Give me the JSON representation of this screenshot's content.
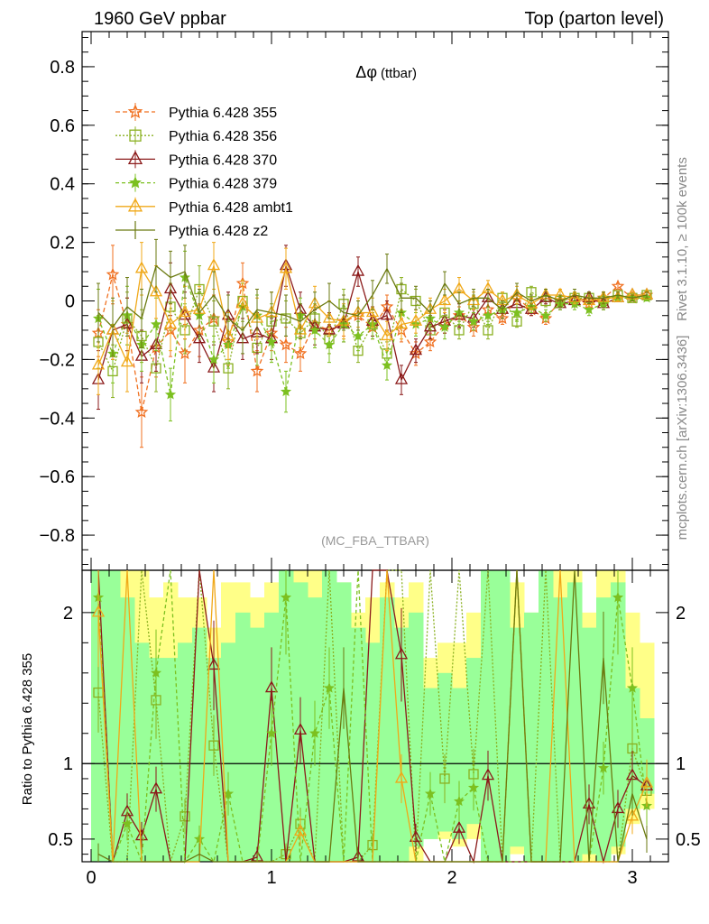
{
  "header": {
    "left": "1960 GeV ppbar",
    "right": "Top (parton level)"
  },
  "side_labels": {
    "rivet": "Rivet 3.1.10, ≥ 100k events",
    "mcplots": "mcplots.cern.ch [arXiv:1306.3436]"
  },
  "chart_data": [
    {
      "type": "line",
      "title": "Δφ",
      "title_suffix": "(ttbar)",
      "watermark": "(MC_FBA_TTBAR)",
      "xlim": [
        -0.05,
        3.2
      ],
      "ylim": [
        -0.92,
        0.92
      ],
      "yticks": [
        -0.8,
        -0.6,
        -0.4,
        -0.2,
        0,
        0.2,
        0.4,
        0.6,
        0.8
      ],
      "ytick_labels": [
        "−0.8",
        "−0.6",
        "−0.4",
        "−0.2",
        "0",
        "0.2",
        "0.4",
        "0.6",
        "0.8"
      ],
      "legend_position": "upper-left",
      "x": [
        0.04,
        0.12,
        0.2,
        0.28,
        0.36,
        0.44,
        0.52,
        0.6,
        0.68,
        0.76,
        0.84,
        0.92,
        1.0,
        1.08,
        1.16,
        1.24,
        1.32,
        1.4,
        1.48,
        1.56,
        1.64,
        1.72,
        1.8,
        1.88,
        1.96,
        2.04,
        2.12,
        2.2,
        2.28,
        2.36,
        2.44,
        2.52,
        2.6,
        2.68,
        2.76,
        2.84,
        2.92,
        3.0,
        3.08
      ],
      "series": [
        {
          "name": "Pythia 6.428 355",
          "color": "#f07020",
          "marker": "star-open",
          "dash": "5,3",
          "values": [
            -0.11,
            0.09,
            -0.08,
            -0.38,
            -0.16,
            -0.1,
            -0.18,
            -0.1,
            -0.06,
            -0.14,
            0.06,
            -0.24,
            -0.11,
            -0.15,
            -0.18,
            -0.08,
            -0.1,
            -0.07,
            -0.05,
            -0.09,
            -0.02,
            -0.1,
            -0.18,
            -0.14,
            -0.08,
            -0.05,
            -0.09,
            -0.03,
            -0.06,
            0.01,
            -0.03,
            -0.06,
            0.0,
            0.01,
            -0.01,
            0.01,
            0.05,
            0.01,
            0.02
          ],
          "errors": [
            0.08,
            0.1,
            0.09,
            0.12,
            0.1,
            0.09,
            0.1,
            0.09,
            0.08,
            0.08,
            0.07,
            0.07,
            0.06,
            0.06,
            0.06,
            0.05,
            0.05,
            0.05,
            0.05,
            0.04,
            0.04,
            0.04,
            0.04,
            0.03,
            0.03,
            0.03,
            0.03,
            0.03,
            0.02,
            0.02,
            0.02,
            0.02,
            0.02,
            0.02,
            0.02,
            0.02,
            0.01,
            0.01,
            0.01
          ]
        },
        {
          "name": "Pythia 6.428 356",
          "color": "#8ab020",
          "marker": "square-open",
          "dash": "2,2",
          "values": [
            -0.14,
            -0.24,
            -0.06,
            -0.12,
            -0.23,
            -0.02,
            -0.1,
            0.04,
            -0.07,
            -0.23,
            0.0,
            -0.16,
            -0.07,
            -0.06,
            -0.11,
            -0.06,
            -0.13,
            -0.01,
            -0.17,
            -0.08,
            -0.18,
            0.04,
            0.0,
            -0.1,
            -0.04,
            -0.1,
            -0.01,
            -0.1,
            0.01,
            -0.07,
            0.03,
            0.0,
            0.0,
            0.01,
            0.01,
            0.0,
            0.02,
            0.01,
            0.02
          ],
          "errors": [
            0.09,
            0.09,
            0.09,
            0.09,
            0.08,
            0.08,
            0.08,
            0.08,
            0.07,
            0.07,
            0.07,
            0.06,
            0.06,
            0.06,
            0.05,
            0.05,
            0.05,
            0.05,
            0.04,
            0.04,
            0.04,
            0.04,
            0.04,
            0.03,
            0.03,
            0.03,
            0.03,
            0.03,
            0.02,
            0.02,
            0.02,
            0.02,
            0.02,
            0.02,
            0.02,
            0.02,
            0.01,
            0.01,
            0.01
          ]
        },
        {
          "name": "Pythia 6.428 370",
          "color": "#8b1a1a",
          "marker": "triangle-open",
          "dash": "",
          "values": [
            -0.27,
            -0.1,
            -0.08,
            -0.19,
            -0.15,
            0.04,
            -0.05,
            -0.13,
            -0.23,
            -0.05,
            -0.13,
            -0.11,
            -0.13,
            0.12,
            -0.03,
            -0.09,
            -0.1,
            -0.08,
            0.1,
            -0.07,
            -0.05,
            -0.27,
            -0.17,
            -0.09,
            -0.07,
            -0.05,
            -0.06,
            0.01,
            -0.03,
            -0.01,
            -0.03,
            0.01,
            -0.01,
            0.0,
            0.01,
            -0.01,
            0.01,
            0.02,
            0.02
          ],
          "errors": [
            0.1,
            0.1,
            0.09,
            0.09,
            0.09,
            0.09,
            0.08,
            0.08,
            0.08,
            0.08,
            0.07,
            0.07,
            0.07,
            0.07,
            0.06,
            0.06,
            0.06,
            0.06,
            0.05,
            0.05,
            0.05,
            0.05,
            0.04,
            0.04,
            0.04,
            0.04,
            0.03,
            0.03,
            0.03,
            0.03,
            0.02,
            0.02,
            0.02,
            0.02,
            0.02,
            0.02,
            0.01,
            0.01,
            0.01
          ]
        },
        {
          "name": "Pythia 6.428 379",
          "color": "#7cc020",
          "marker": "star-filled",
          "dash": "4,3",
          "values": [
            -0.06,
            -0.18,
            -0.05,
            -0.15,
            -0.08,
            -0.32,
            0.08,
            -0.05,
            -0.2,
            -0.15,
            -0.02,
            -0.05,
            -0.14,
            -0.31,
            -0.05,
            -0.1,
            -0.15,
            -0.08,
            -0.12,
            -0.08,
            -0.22,
            -0.04,
            -0.08,
            -0.06,
            -0.09,
            -0.04,
            -0.07,
            -0.05,
            -0.03,
            -0.04,
            -0.02,
            -0.05,
            -0.01,
            -0.01,
            -0.03,
            -0.01,
            0.01,
            0.01,
            0.01
          ],
          "errors": [
            0.1,
            0.1,
            0.1,
            0.09,
            0.09,
            0.09,
            0.09,
            0.08,
            0.08,
            0.08,
            0.08,
            0.07,
            0.07,
            0.07,
            0.06,
            0.06,
            0.06,
            0.06,
            0.05,
            0.05,
            0.05,
            0.05,
            0.04,
            0.04,
            0.04,
            0.04,
            0.03,
            0.03,
            0.03,
            0.03,
            0.02,
            0.02,
            0.02,
            0.02,
            0.02,
            0.02,
            0.01,
            0.01,
            0.01
          ]
        },
        {
          "name": "Pythia 6.428 ambt1",
          "color": "#f0a818",
          "marker": "triangle-open",
          "dash": "",
          "values": [
            -0.22,
            -0.1,
            -0.21,
            0.11,
            0.03,
            -0.08,
            -0.04,
            -0.03,
            0.12,
            -0.12,
            -0.01,
            -0.06,
            -0.04,
            0.11,
            -0.1,
            -0.01,
            -0.06,
            -0.07,
            -0.04,
            -0.04,
            -0.12,
            -0.08,
            -0.07,
            -0.03,
            0.0,
            0.04,
            0.0,
            0.04,
            0.0,
            0.02,
            -0.01,
            0.02,
            0.02,
            0.01,
            0.0,
            0.01,
            0.01,
            0.02,
            0.02
          ],
          "errors": [
            0.1,
            0.1,
            0.1,
            0.09,
            0.09,
            0.09,
            0.09,
            0.08,
            0.08,
            0.08,
            0.08,
            0.07,
            0.07,
            0.07,
            0.06,
            0.06,
            0.06,
            0.06,
            0.05,
            0.05,
            0.05,
            0.05,
            0.04,
            0.04,
            0.04,
            0.04,
            0.03,
            0.03,
            0.03,
            0.03,
            0.02,
            0.02,
            0.02,
            0.02,
            0.02,
            0.02,
            0.01,
            0.01,
            0.01
          ]
        },
        {
          "name": "Pythia 6.428 z2",
          "color": "#6b7a10",
          "marker": "none",
          "dash": "",
          "values": [
            -0.04,
            -0.09,
            -0.02,
            -0.06,
            0.12,
            0.08,
            0.1,
            -0.04,
            0.02,
            -0.06,
            -0.1,
            -0.03,
            -0.04,
            -0.05,
            -0.07,
            -0.03,
            0.0,
            -0.04,
            -0.05,
            0.02,
            0.11,
            0.01,
            0.01,
            -0.04,
            0.06,
            -0.01,
            0.01,
            0.01,
            -0.03,
            0.03,
            0.0,
            0.02,
            0.0,
            0.02,
            0.01,
            0.01,
            0.02,
            0.01,
            0.02
          ],
          "errors": [
            0.1,
            0.1,
            0.1,
            0.1,
            0.09,
            0.09,
            0.09,
            0.08,
            0.08,
            0.08,
            0.08,
            0.07,
            0.07,
            0.07,
            0.06,
            0.06,
            0.06,
            0.06,
            0.05,
            0.05,
            0.05,
            0.05,
            0.04,
            0.04,
            0.04,
            0.04,
            0.03,
            0.03,
            0.03,
            0.03,
            0.02,
            0.02,
            0.02,
            0.02,
            0.02,
            0.02,
            0.01,
            0.01,
            0.01
          ]
        }
      ]
    },
    {
      "type": "line",
      "ylabel": "Ratio to Pythia 6.428 355",
      "reference": 1,
      "ylim": [
        0.35,
        2.28
      ],
      "xticks": [
        0,
        1,
        2,
        3
      ],
      "xtick_labels": [
        "0",
        "1",
        "2",
        "3"
      ],
      "yticks": [
        0.5,
        1,
        2
      ],
      "ytick_labels": [
        "0.5",
        "1",
        "2"
      ],
      "band_yellow": [
        [
          0.35,
          2.3
        ],
        [
          0.35,
          2.3
        ],
        [
          0.35,
          2.3
        ],
        [
          0.35,
          2.3
        ],
        [
          0.35,
          2.1
        ],
        [
          0.35,
          2.2
        ],
        [
          0.35,
          2.1
        ],
        [
          0.35,
          2.1
        ],
        [
          0.35,
          1.9
        ],
        [
          0.35,
          2.2
        ],
        [
          0.35,
          2.2
        ],
        [
          0.35,
          2.1
        ],
        [
          0.35,
          2.2
        ],
        [
          0.35,
          2.2
        ],
        [
          0.35,
          2.3
        ],
        [
          0.35,
          2.3
        ],
        [
          0.35,
          2.3
        ],
        [
          0.35,
          2.2
        ],
        [
          0.35,
          2.0
        ],
        [
          0.35,
          2.1
        ],
        [
          0.35,
          2.2
        ],
        [
          0.35,
          2.1
        ],
        [
          0.35,
          2.2
        ],
        [
          0.5,
          1.7
        ],
        [
          0.5,
          1.8
        ],
        [
          0.45,
          1.8
        ],
        [
          0.5,
          2.0
        ],
        [
          0.35,
          2.1
        ],
        [
          0.35,
          2.3
        ],
        [
          0.4,
          2.2
        ],
        [
          0.35,
          2.0
        ],
        [
          0.35,
          2.3
        ],
        [
          0.35,
          2.3
        ],
        [
          0.35,
          2.3
        ],
        [
          0.35,
          2.0
        ],
        [
          0.35,
          2.3
        ],
        [
          0.4,
          2.3
        ],
        [
          0.6,
          2.0
        ],
        [
          0.7,
          1.8
        ]
      ],
      "band_green": [
        [
          0.35,
          2.3
        ],
        [
          0.35,
          2.3
        ],
        [
          0.35,
          2.1
        ],
        [
          0.35,
          1.8
        ],
        [
          0.35,
          1.7
        ],
        [
          0.35,
          1.7
        ],
        [
          0.35,
          1.8
        ],
        [
          0.35,
          1.9
        ],
        [
          0.35,
          1.7
        ],
        [
          0.35,
          1.8
        ],
        [
          0.35,
          2.0
        ],
        [
          0.35,
          1.9
        ],
        [
          0.35,
          2.0
        ],
        [
          0.35,
          2.3
        ],
        [
          0.35,
          2.2
        ],
        [
          0.35,
          2.1
        ],
        [
          0.35,
          2.3
        ],
        [
          0.35,
          2.2
        ],
        [
          0.35,
          1.9
        ],
        [
          0.35,
          1.8
        ],
        [
          0.35,
          2.1
        ],
        [
          0.35,
          1.9
        ],
        [
          0.45,
          2.0
        ],
        [
          0.5,
          1.5
        ],
        [
          0.55,
          1.6
        ],
        [
          0.5,
          1.5
        ],
        [
          0.6,
          1.7
        ],
        [
          0.35,
          2.3
        ],
        [
          0.35,
          2.3
        ],
        [
          0.45,
          1.9
        ],
        [
          0.35,
          2.0
        ],
        [
          0.35,
          2.3
        ],
        [
          0.35,
          2.1
        ],
        [
          0.35,
          2.2
        ],
        [
          0.4,
          1.9
        ],
        [
          0.35,
          2.1
        ],
        [
          0.45,
          2.2
        ],
        [
          0.7,
          1.5
        ],
        [
          0.8,
          1.3
        ]
      ],
      "series": [
        {
          "name": "Pythia 6.428 356",
          "values": [
            1.47,
            0.35,
            0.35,
            2.3,
            1.42,
            0.35,
            0.65,
            2.3,
            1.12,
            0.35,
            0.35,
            0.35,
            0.35,
            0.4,
            0.6,
            0.35,
            2.3,
            0.35,
            0.35,
            0.46,
            2.3,
            2.3,
            0.35,
            2.3,
            0.9,
            2.3,
            0.93,
            2.3,
            0.35,
            2.3,
            0.35,
            2.3,
            0.35,
            0.35,
            0.35,
            0.35,
            0.35,
            1.1,
            0.82
          ]
        },
        {
          "name": "Pythia 6.428 370",
          "values": [
            2.3,
            0.35,
            0.68,
            0.52,
            0.83,
            0.35,
            0.35,
            2.3,
            1.65,
            0.35,
            0.35,
            0.38,
            1.5,
            0.35,
            1.22,
            0.35,
            0.35,
            0.35,
            0.38,
            2.3,
            2.3,
            1.72,
            0.51,
            0.35,
            0.35,
            0.57,
            0.35,
            0.92,
            0.35,
            0.35,
            0.35,
            0.35,
            0.35,
            0.35,
            0.73,
            0.35,
            0.7,
            0.92,
            0.85
          ]
        },
        {
          "name": "Pythia 6.428 379",
          "values": [
            2.1,
            0.35,
            0.6,
            0.35,
            1.6,
            2.3,
            0.35,
            0.5,
            0.35,
            0.8,
            0.35,
            0.35,
            1.2,
            2.1,
            0.35,
            1.2,
            1.5,
            0.35,
            2.3,
            0.35,
            0.35,
            0.35,
            0.35,
            0.8,
            0.35,
            0.75,
            0.84,
            0.35,
            0.35,
            0.35,
            0.35,
            0.35,
            0.35,
            0.35,
            0.35,
            0.97,
            2.1,
            1.5,
            0.72
          ]
        },
        {
          "name": "Pythia 6.428 ambt1",
          "values": [
            2.0,
            0.35,
            2.3,
            0.35,
            0.35,
            0.35,
            0.35,
            0.35,
            2.3,
            0.35,
            0.35,
            0.35,
            0.35,
            0.35,
            0.55,
            0.35,
            0.35,
            0.35,
            0.35,
            0.35,
            2.3,
            0.9,
            0.35,
            0.35,
            0.35,
            0.35,
            0.35,
            0.35,
            0.35,
            2.3,
            0.35,
            0.35,
            2.3,
            0.35,
            0.35,
            0.35,
            0.35,
            0.65,
            0.87
          ]
        },
        {
          "name": "Pythia 6.428 z2",
          "values": [
            0.4,
            0.35,
            0.35,
            0.35,
            0.35,
            0.35,
            0.35,
            0.4,
            0.35,
            0.35,
            0.35,
            0.35,
            0.35,
            0.35,
            0.35,
            0.35,
            0.35,
            1.5,
            0.35,
            0.35,
            0.35,
            0.35,
            0.35,
            0.35,
            0.35,
            0.35,
            0.35,
            0.35,
            0.35,
            2.3,
            0.35,
            0.35,
            0.35,
            2.3,
            0.35,
            1.7,
            0.35,
            0.8,
            0.5
          ]
        }
      ]
    }
  ]
}
